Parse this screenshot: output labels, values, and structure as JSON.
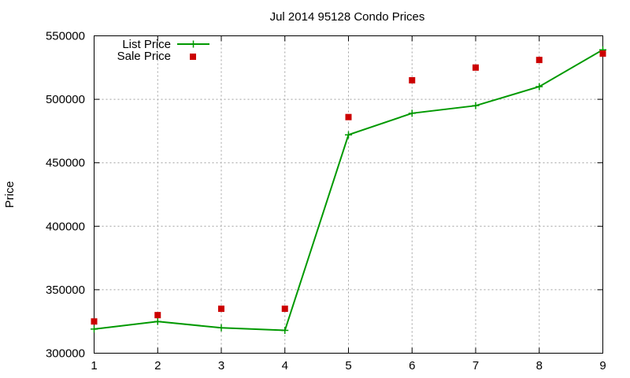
{
  "chart_data": {
    "type": "line",
    "title": "Jul 2014 95128 Condo Prices",
    "xlabel": "",
    "ylabel": "Price",
    "x": [
      1,
      2,
      3,
      4,
      5,
      6,
      7,
      8,
      9
    ],
    "xlim": [
      1,
      9
    ],
    "ylim": [
      300000,
      550000
    ],
    "xticks": [
      "1",
      "2",
      "3",
      "4",
      "5",
      "6",
      "7",
      "8",
      "9"
    ],
    "yticks": [
      "300000",
      "350000",
      "400000",
      "450000",
      "500000",
      "550000"
    ],
    "grid": true,
    "legend_position": "top-left",
    "series": [
      {
        "name": "List Price",
        "style": "lines+points",
        "color": "#009900",
        "values": [
          319000,
          325000,
          320000,
          318000,
          472000,
          489000,
          495000,
          510000,
          539000
        ]
      },
      {
        "name": "Sale Price",
        "style": "points",
        "color": "#cc0000",
        "values": [
          325000,
          330000,
          335000,
          335000,
          486000,
          515000,
          525000,
          531000,
          536000
        ]
      }
    ]
  }
}
